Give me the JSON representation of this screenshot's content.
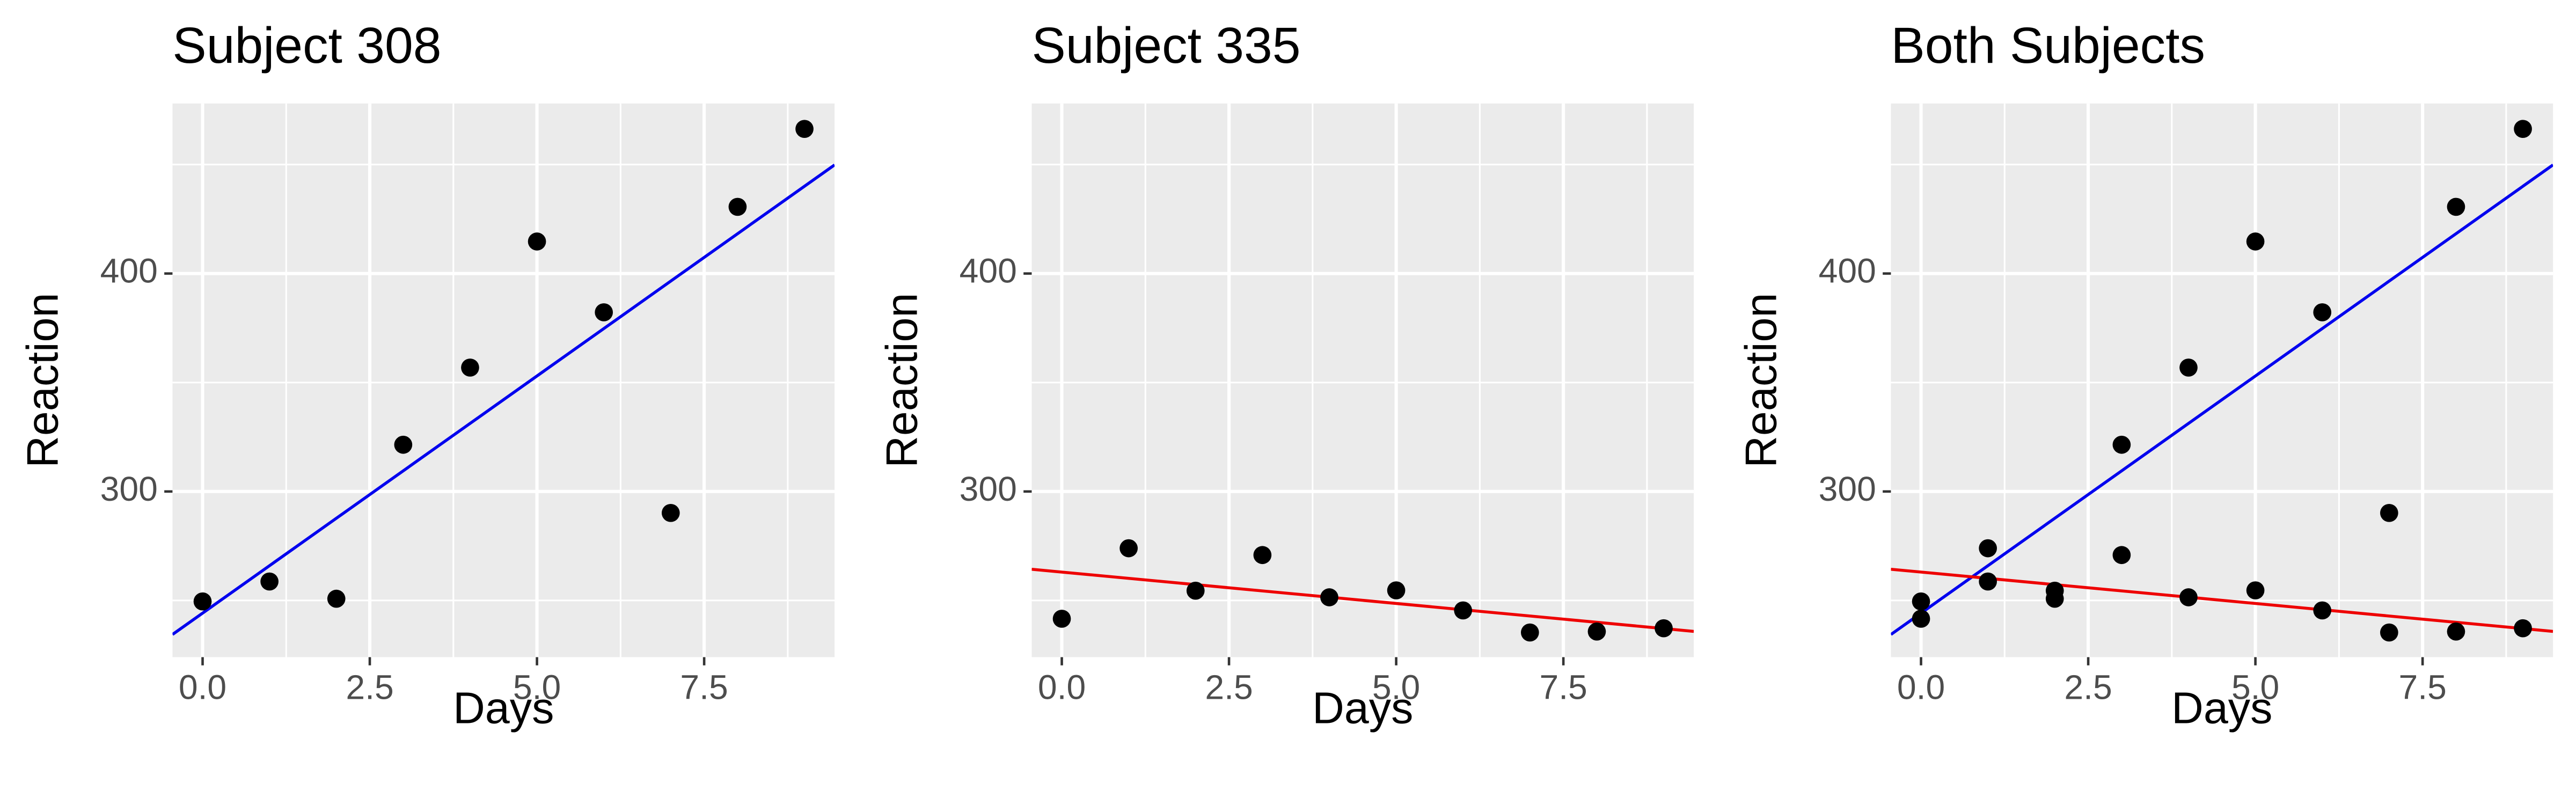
{
  "chart_data": [
    {
      "type": "scatter",
      "title": "Subject 308",
      "x_label": "Days",
      "y_label": "Reaction",
      "xlim": [
        -0.45,
        9.45
      ],
      "ylim": [
        224,
        478
      ],
      "xticks": [
        {
          "value": 0,
          "label": "0.0"
        },
        2.5,
        {
          "value": 5,
          "label": "5.0"
        },
        7.5
      ],
      "yticks": [
        300,
        400
      ],
      "x_minor_grid": [
        1.25,
        3.75,
        6.25,
        8.75
      ],
      "y_minor_grid": [
        250,
        350,
        450
      ],
      "grid": true,
      "series": [
        {
          "color": "#000000",
          "x": [
            0,
            1,
            2,
            3,
            4,
            5,
            6,
            7,
            8,
            9
          ],
          "values": [
            249.56,
            258.7,
            250.8,
            321.44,
            356.85,
            414.69,
            382.2,
            290.15,
            430.59,
            466.35
          ],
          "fit_intercept": 244.19,
          "fit_slope": 21.76,
          "fit_color": "#0000ee"
        }
      ]
    },
    {
      "type": "scatter",
      "title": "Subject 335",
      "x_label": "Days",
      "y_label": "Reaction",
      "xlim": [
        -0.45,
        9.45
      ],
      "ylim": [
        224,
        478
      ],
      "xticks": [
        {
          "value": 0,
          "label": "0.0"
        },
        2.5,
        {
          "value": 5,
          "label": "5.0"
        },
        7.5
      ],
      "yticks": [
        300,
        400
      ],
      "x_minor_grid": [
        1.25,
        3.75,
        6.25,
        8.75
      ],
      "y_minor_grid": [
        250,
        350,
        450
      ],
      "grid": true,
      "series": [
        {
          "color": "#000000",
          "x": [
            0,
            1,
            2,
            3,
            4,
            5,
            6,
            7,
            8,
            9
          ],
          "values": [
            241.61,
            273.95,
            254.49,
            270.84,
            251.45,
            254.64,
            245.44,
            235.31,
            235.75,
            237.25
          ],
          "fit_intercept": 263.03,
          "fit_slope": -2.88,
          "fit_color": "#ee0000"
        }
      ]
    },
    {
      "type": "scatter",
      "title": "Both Subjects",
      "x_label": "Days",
      "y_label": "Reaction",
      "xlim": [
        -0.45,
        9.45
      ],
      "ylim": [
        224,
        478
      ],
      "xticks": [
        {
          "value": 0,
          "label": "0.0"
        },
        2.5,
        {
          "value": 5,
          "label": "5.0"
        },
        7.5
      ],
      "yticks": [
        300,
        400
      ],
      "x_minor_grid": [
        1.25,
        3.75,
        6.25,
        8.75
      ],
      "y_minor_grid": [
        250,
        350,
        450
      ],
      "grid": true,
      "series": [
        {
          "color": "#000000",
          "x": [
            0,
            1,
            2,
            3,
            4,
            5,
            6,
            7,
            8,
            9
          ],
          "values": [
            249.56,
            258.7,
            250.8,
            321.44,
            356.85,
            414.69,
            382.2,
            290.15,
            430.59,
            466.35
          ],
          "fit_intercept": 244.19,
          "fit_slope": 21.76,
          "fit_color": "#0000ee"
        },
        {
          "color": "#000000",
          "x": [
            0,
            1,
            2,
            3,
            4,
            5,
            6,
            7,
            8,
            9
          ],
          "values": [
            241.61,
            273.95,
            254.49,
            270.84,
            251.45,
            254.64,
            245.44,
            235.31,
            235.75,
            237.25
          ],
          "fit_intercept": 263.03,
          "fit_slope": -2.88,
          "fit_color": "#ee0000"
        }
      ]
    }
  ]
}
